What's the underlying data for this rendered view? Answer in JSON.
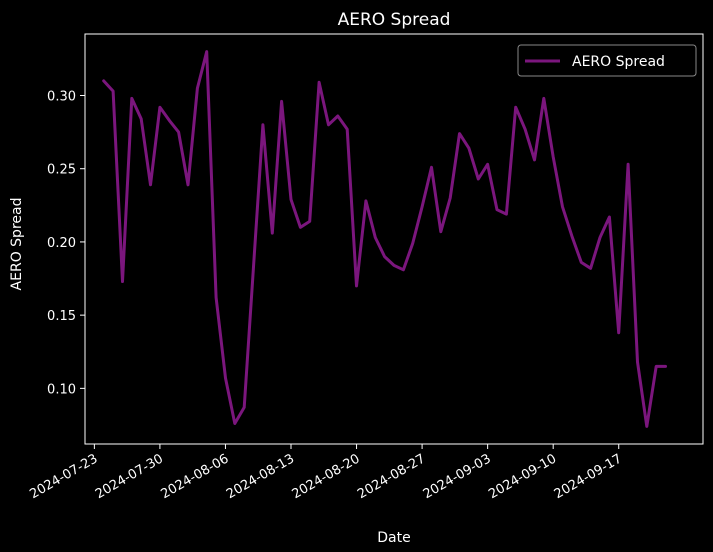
{
  "chart_data": {
    "type": "line",
    "title": "AERO Spread",
    "xlabel": "Date",
    "ylabel": "AERO Spread",
    "xlim": [
      "2024-07-22",
      "2024-09-26"
    ],
    "ylim": [
      0.062,
      0.342
    ],
    "x_ticks": [
      "2024-07-23",
      "2024-07-30",
      "2024-08-06",
      "2024-08-13",
      "2024-08-20",
      "2024-08-27",
      "2024-09-03",
      "2024-09-10",
      "2024-09-17"
    ],
    "y_ticks": [
      0.1,
      0.15,
      0.2,
      0.25,
      0.3
    ],
    "y_tick_labels": [
      "0.10",
      "0.15",
      "0.20",
      "0.25",
      "0.30"
    ],
    "legend_position": "upper-right",
    "series": [
      {
        "name": "AERO Spread",
        "color": "#7b167d",
        "x": [
          "2024-07-24",
          "2024-07-25",
          "2024-07-26",
          "2024-07-27",
          "2024-07-28",
          "2024-07-29",
          "2024-07-30",
          "2024-07-31",
          "2024-08-01",
          "2024-08-02",
          "2024-08-03",
          "2024-08-04",
          "2024-08-05",
          "2024-08-06",
          "2024-08-07",
          "2024-08-08",
          "2024-08-09",
          "2024-08-10",
          "2024-08-11",
          "2024-08-12",
          "2024-08-13",
          "2024-08-14",
          "2024-08-15",
          "2024-08-16",
          "2024-08-17",
          "2024-08-18",
          "2024-08-19",
          "2024-08-20",
          "2024-08-21",
          "2024-08-22",
          "2024-08-23",
          "2024-08-24",
          "2024-08-25",
          "2024-08-26",
          "2024-08-27",
          "2024-08-28",
          "2024-08-29",
          "2024-08-30",
          "2024-08-31",
          "2024-09-01",
          "2024-09-02",
          "2024-09-03",
          "2024-09-04",
          "2024-09-05",
          "2024-09-06",
          "2024-09-07",
          "2024-09-08",
          "2024-09-09",
          "2024-09-10",
          "2024-09-11",
          "2024-09-12",
          "2024-09-13",
          "2024-09-14",
          "2024-09-15",
          "2024-09-16",
          "2024-09-17",
          "2024-09-18",
          "2024-09-19",
          "2024-09-20",
          "2024-09-21",
          "2024-09-22"
        ],
        "values": [
          0.31,
          0.303,
          0.173,
          0.298,
          0.284,
          0.239,
          0.292,
          0.283,
          0.275,
          0.239,
          0.305,
          0.33,
          0.162,
          0.107,
          0.076,
          0.087,
          0.183,
          0.28,
          0.206,
          0.296,
          0.229,
          0.21,
          0.214,
          0.309,
          0.28,
          0.286,
          0.277,
          0.17,
          0.228,
          0.203,
          0.19,
          0.184,
          0.181,
          0.199,
          0.224,
          0.251,
          0.207,
          0.23,
          0.274,
          0.264,
          0.243,
          0.253,
          0.222,
          0.219,
          0.292,
          0.277,
          0.256,
          0.298,
          0.258,
          0.224,
          0.204,
          0.186,
          0.182,
          0.203,
          0.217,
          0.138,
          0.253,
          0.118,
          0.074,
          0.115,
          0.115
        ]
      }
    ]
  }
}
